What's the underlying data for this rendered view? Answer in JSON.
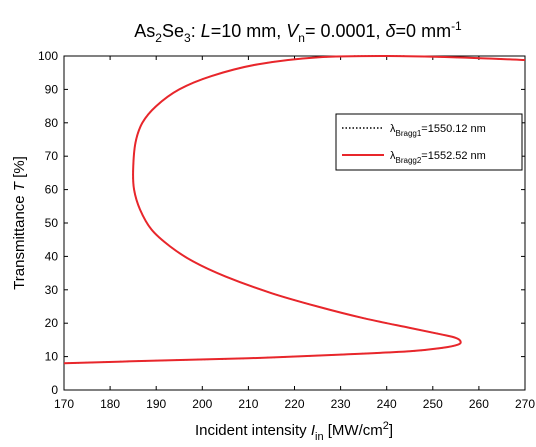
{
  "chart_data": {
    "type": "line",
    "title": "As₂Se₃: L=10 mm, Vₙ= 0.0001, δ=0 mm⁻¹",
    "xlabel": "Incident intensity I_in [MW/cm²]",
    "ylabel": "Transmittance T [%]",
    "xlim": [
      170,
      270
    ],
    "ylim": [
      0,
      100
    ],
    "xticks": [
      170,
      180,
      190,
      200,
      210,
      220,
      230,
      240,
      250,
      260,
      270
    ],
    "yticks": [
      0,
      10,
      20,
      30,
      40,
      50,
      60,
      70,
      80,
      90,
      100
    ],
    "grid": false,
    "legend_position": "upper-right",
    "series": [
      {
        "name": "λBragg1=1550.12 nm",
        "style": "dotted",
        "color": "#000000",
        "x": [
          170,
          190,
          210,
          230,
          245,
          252,
          255.5,
          256,
          255,
          252,
          245,
          235,
          225,
          215,
          205,
          198,
          193,
          189,
          186.5,
          185.2,
          185,
          185.5,
          187,
          190,
          195,
          202,
          212,
          225,
          240,
          255,
          270
        ],
        "y": [
          8,
          8.8,
          9.5,
          10.6,
          11.6,
          12.6,
          13.6,
          14.6,
          15.6,
          16.6,
          18.6,
          21.5,
          25,
          29,
          34,
          38.5,
          43,
          48,
          54,
          60,
          66,
          74,
          80,
          85,
          90,
          94,
          97.5,
          99.6,
          100,
          99.6,
          98.8
        ]
      },
      {
        "name": "λBragg2=1552.52 nm",
        "style": "solid",
        "color": "#e8262b",
        "x": [
          170,
          190,
          210,
          230,
          245,
          252,
          255.5,
          256,
          255,
          252,
          245,
          235,
          225,
          215,
          205,
          198,
          193,
          189,
          186.5,
          185.2,
          185,
          185.5,
          187,
          190,
          195,
          202,
          212,
          225,
          240,
          255,
          270
        ],
        "y": [
          8,
          8.8,
          9.5,
          10.6,
          11.6,
          12.6,
          13.6,
          14.6,
          15.6,
          16.6,
          18.6,
          21.5,
          25,
          29,
          34,
          38.5,
          43,
          48,
          54,
          60,
          66,
          74,
          80,
          85,
          90,
          94,
          97.5,
          99.6,
          100,
          99.6,
          98.8
        ]
      }
    ]
  },
  "title_parts": {
    "compound_main": "As",
    "compound_sub1": "2",
    "compound_mid": "Se",
    "compound_sub2": "3",
    "after_compound": ": ",
    "L_sym": "L",
    "L_val": "=10 mm, ",
    "V_sym": "V",
    "V_sub": "n",
    "V_val": "= 0.0001, ",
    "delta_sym": "δ",
    "delta_val": "=0 mm",
    "delta_sup": "-1"
  },
  "xlabel_parts": {
    "pre": "Incident intensity ",
    "sym": "I",
    "sub": "in",
    "post": " [MW/cm",
    "sup": "2",
    "close": "]"
  },
  "ylabel_parts": {
    "pre": "Transmittance ",
    "sym": "T",
    "post": " [%]"
  },
  "legend": {
    "item1": {
      "lambda": "λ",
      "sub": "Bragg1",
      "val": "=1550.12 nm"
    },
    "item2": {
      "lambda": "λ",
      "sub": "Bragg2",
      "val": "=1552.52 nm"
    }
  }
}
